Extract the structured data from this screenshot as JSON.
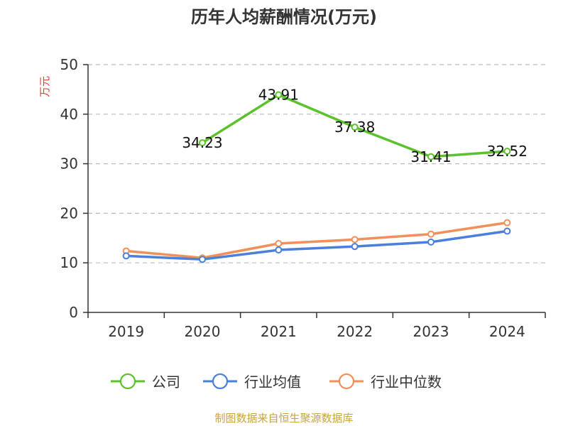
{
  "chart_data": {
    "type": "line",
    "title": "历年人均薪酬情况(万元)",
    "ylabel": "万元",
    "xlabel": "",
    "categories": [
      "2019",
      "2020",
      "2021",
      "2022",
      "2023",
      "2024"
    ],
    "ylim": [
      0,
      50
    ],
    "yticks": [
      0,
      10,
      20,
      30,
      40,
      50
    ],
    "grid": true,
    "legend_position": "bottom",
    "series": [
      {
        "name": "公司",
        "color": "#5cc22b",
        "values": [
          null,
          34.23,
          43.91,
          37.38,
          31.41,
          32.52
        ],
        "labels": [
          "",
          "34.23",
          "43.91",
          "37.38",
          "31.41",
          "32.52"
        ]
      },
      {
        "name": "行业均值",
        "color": "#4a7fdb",
        "values": [
          11.4,
          10.7,
          12.6,
          13.3,
          14.2,
          16.4
        ]
      },
      {
        "name": "行业中位数",
        "color": "#f0905a",
        "values": [
          12.4,
          11.0,
          13.9,
          14.7,
          15.8,
          18.1
        ]
      }
    ]
  },
  "source_text": "制图数据来自恒生聚源数据库",
  "colors": {
    "axis_unit": "#e03c3c",
    "source": "#c9a33b",
    "grid": "#bbbbbb"
  }
}
